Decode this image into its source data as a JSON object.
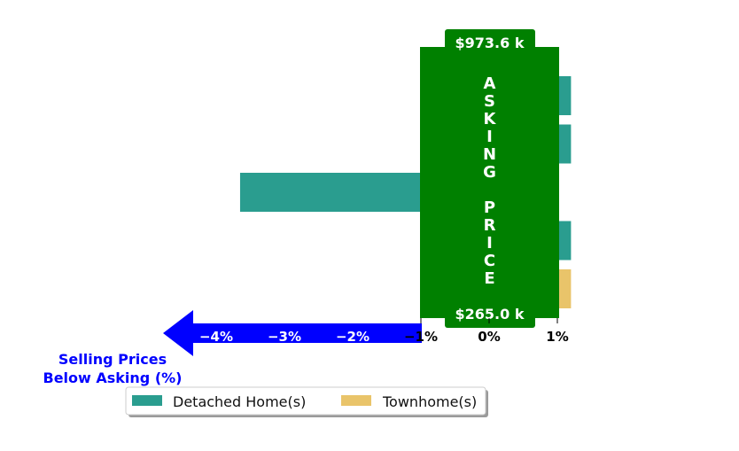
{
  "chart_data": {
    "type": "bar",
    "orientation": "horizontal",
    "xlim": [
      -5,
      1.2
    ],
    "xticks": [
      -4,
      -3,
      -2,
      -1,
      0,
      1
    ],
    "xtick_labels": [
      "−4%",
      "−3%",
      "−2%",
      "−1%",
      "0%",
      "1%"
    ],
    "rows": [
      {
        "series": "Detached Home(s)",
        "value": 1.2
      },
      {
        "series": "Detached Home(s)",
        "value": 1.2
      },
      {
        "series": "Detached Home(s)",
        "value": -3.65
      },
      {
        "series": "Detached Home(s)",
        "value": 1.2
      },
      {
        "series": "Townhome(s)",
        "value": 1.2
      }
    ],
    "series": [
      {
        "name": "Detached Home(s)",
        "color": "#2a9d8f"
      },
      {
        "name": "Townhome(s)",
        "color": "#e9c46a"
      }
    ],
    "asking_price_band": {
      "label_letters": [
        "A",
        "S",
        "K",
        "I",
        "N",
        "G",
        "",
        "P",
        "R",
        "I",
        "C",
        "E"
      ],
      "top_price": "$973.6 k",
      "bottom_price": "$265.0 k",
      "x_range": [
        -1,
        1
      ],
      "color": "#008000"
    },
    "below_asking_label": [
      "Selling Prices",
      "Below Asking (%)"
    ],
    "below_asking_color": "#0000ff",
    "legend_placement": "bottom-center"
  }
}
